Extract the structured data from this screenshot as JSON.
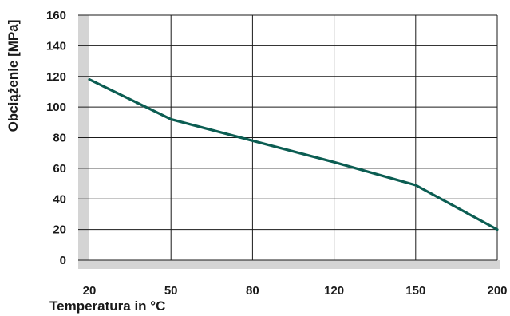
{
  "chart_data": {
    "type": "line",
    "title": "",
    "xlabel": "Temperatura in °C",
    "ylabel": "Obciążenie [MPa]",
    "categories": [
      "20",
      "50",
      "80",
      "120",
      "150",
      "200"
    ],
    "x": [
      20,
      50,
      80,
      120,
      150,
      200
    ],
    "series": [
      {
        "values": [
          118,
          92,
          78,
          64,
          49,
          20
        ]
      }
    ],
    "yticks": [
      0,
      20,
      40,
      60,
      80,
      100,
      120,
      140,
      160
    ],
    "ylim": [
      0,
      160
    ],
    "x_spacing": "categorical",
    "grid": true,
    "legend": "none"
  },
  "colors": {
    "line": "#0b5d52",
    "grid": "#1a1a1a",
    "axis_band": "#d4d4d4",
    "text": "#1a1a1a"
  }
}
